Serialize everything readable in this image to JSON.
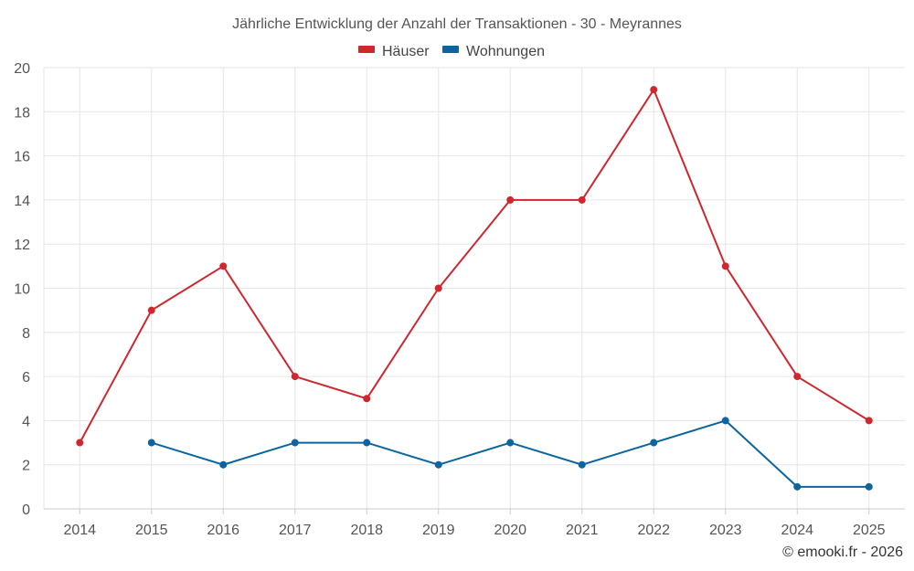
{
  "chart_data": {
    "type": "line",
    "title": "Jährliche Entwicklung der Anzahl der Transaktionen - 30 - Meyrannes",
    "categories": [
      "2014",
      "2015",
      "2016",
      "2017",
      "2018",
      "2019",
      "2020",
      "2021",
      "2022",
      "2023",
      "2024",
      "2025"
    ],
    "ylim": [
      0,
      20
    ],
    "yticks": [
      0,
      2,
      4,
      6,
      8,
      10,
      12,
      14,
      16,
      18,
      20
    ],
    "grid": true,
    "legend_position": "top-center",
    "series": [
      {
        "name": "Häuser",
        "color": "#d0262d",
        "values": [
          3,
          9,
          11,
          6,
          5,
          10,
          14,
          14,
          19,
          11,
          6,
          4
        ]
      },
      {
        "name": "Wohnungen",
        "color": "#0b65a0",
        "values": [
          null,
          3,
          2,
          3,
          3,
          2,
          3,
          2,
          3,
          4,
          1,
          1
        ]
      }
    ],
    "xlabel": "",
    "ylabel": ""
  },
  "credit": "© emooki.fr - 2026"
}
